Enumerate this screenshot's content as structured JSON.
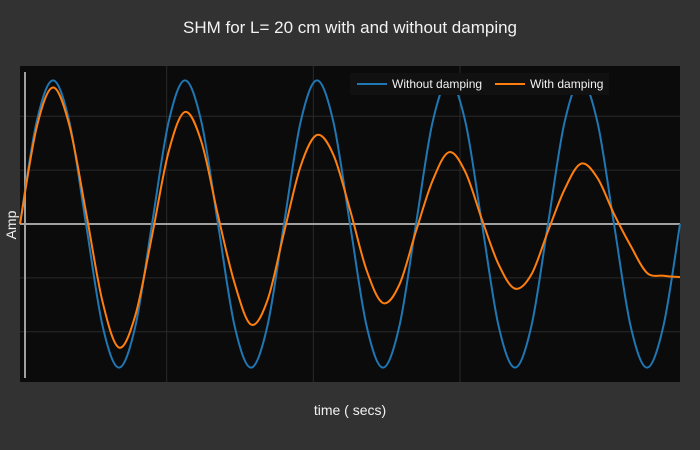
{
  "chart_data": {
    "type": "line",
    "title": "SHM for L= 20 cm with and without damping",
    "xlabel": "time ( secs)",
    "ylabel": "Amp",
    "grid": true,
    "legend_position": "top-right",
    "colors": {
      "background": "#323232",
      "plot_background": "#0b0b0b",
      "grid": "#2a2a2a",
      "zero_line": "#a0a0a0",
      "without_damping": "#1f77b4",
      "with_damping": "#ff7f0e"
    },
    "xlim": [
      0,
      4.5
    ],
    "ylim": [
      -1.1,
      1.1
    ],
    "series": [
      {
        "name": "Without damping",
        "x": [
          0,
          0.1125,
          0.225,
          0.3375,
          0.45,
          0.5625,
          0.675,
          0.7875,
          0.9,
          1.0125,
          1.125,
          1.2375,
          1.35,
          1.4625,
          1.575,
          1.6875,
          1.8,
          1.9125,
          2.025,
          2.1375,
          2.25,
          2.3625,
          2.475,
          2.5875,
          2.7,
          2.8125,
          2.925,
          3.0375,
          3.15,
          3.2625,
          3.375,
          3.4875,
          3.6,
          3.7125,
          3.825,
          3.9375,
          4.05,
          4.1625,
          4.275,
          4.3875,
          4.5
        ],
        "values": [
          0,
          0.707,
          1,
          0.707,
          0,
          -0.707,
          -1,
          -0.707,
          0,
          0.707,
          1,
          0.707,
          0,
          -0.707,
          -1,
          -0.707,
          0,
          0.707,
          1,
          0.707,
          0,
          -0.707,
          -1,
          -0.707,
          0,
          0.707,
          1,
          0.707,
          0,
          -0.707,
          -1,
          -0.707,
          0,
          0.707,
          1,
          0.707,
          0,
          -0.707,
          -1,
          -0.707,
          0
        ]
      },
      {
        "name": "With damping",
        "x": [
          0,
          0.1125,
          0.225,
          0.3375,
          0.45,
          0.5625,
          0.675,
          0.7875,
          0.9,
          1.0125,
          1.125,
          1.2375,
          1.35,
          1.4625,
          1.575,
          1.6875,
          1.8,
          1.9125,
          2.025,
          2.1375,
          2.25,
          2.3625,
          2.475,
          2.5875,
          2.7,
          2.8125,
          2.925,
          3.0375,
          3.15,
          3.2625,
          3.375,
          3.4875,
          3.6,
          3.7125,
          3.825,
          3.9375,
          4.05,
          4.1625,
          4.275,
          4.3875,
          4.5
        ],
        "values": [
          0,
          0.667,
          0.95,
          0.683,
          0.083,
          -0.54,
          -0.86,
          -0.632,
          -0.083,
          0.5,
          0.78,
          0.57,
          0.06,
          -0.41,
          -0.7,
          -0.53,
          -0.06,
          0.4,
          0.62,
          0.48,
          0.1,
          -0.32,
          -0.55,
          -0.42,
          -0.05,
          0.3,
          0.5,
          0.36,
          0.03,
          -0.28,
          -0.45,
          -0.35,
          -0.05,
          0.24,
          0.42,
          0.32,
          0.07,
          -0.15,
          -0.34,
          -0.36,
          -0.37
        ]
      }
    ]
  }
}
